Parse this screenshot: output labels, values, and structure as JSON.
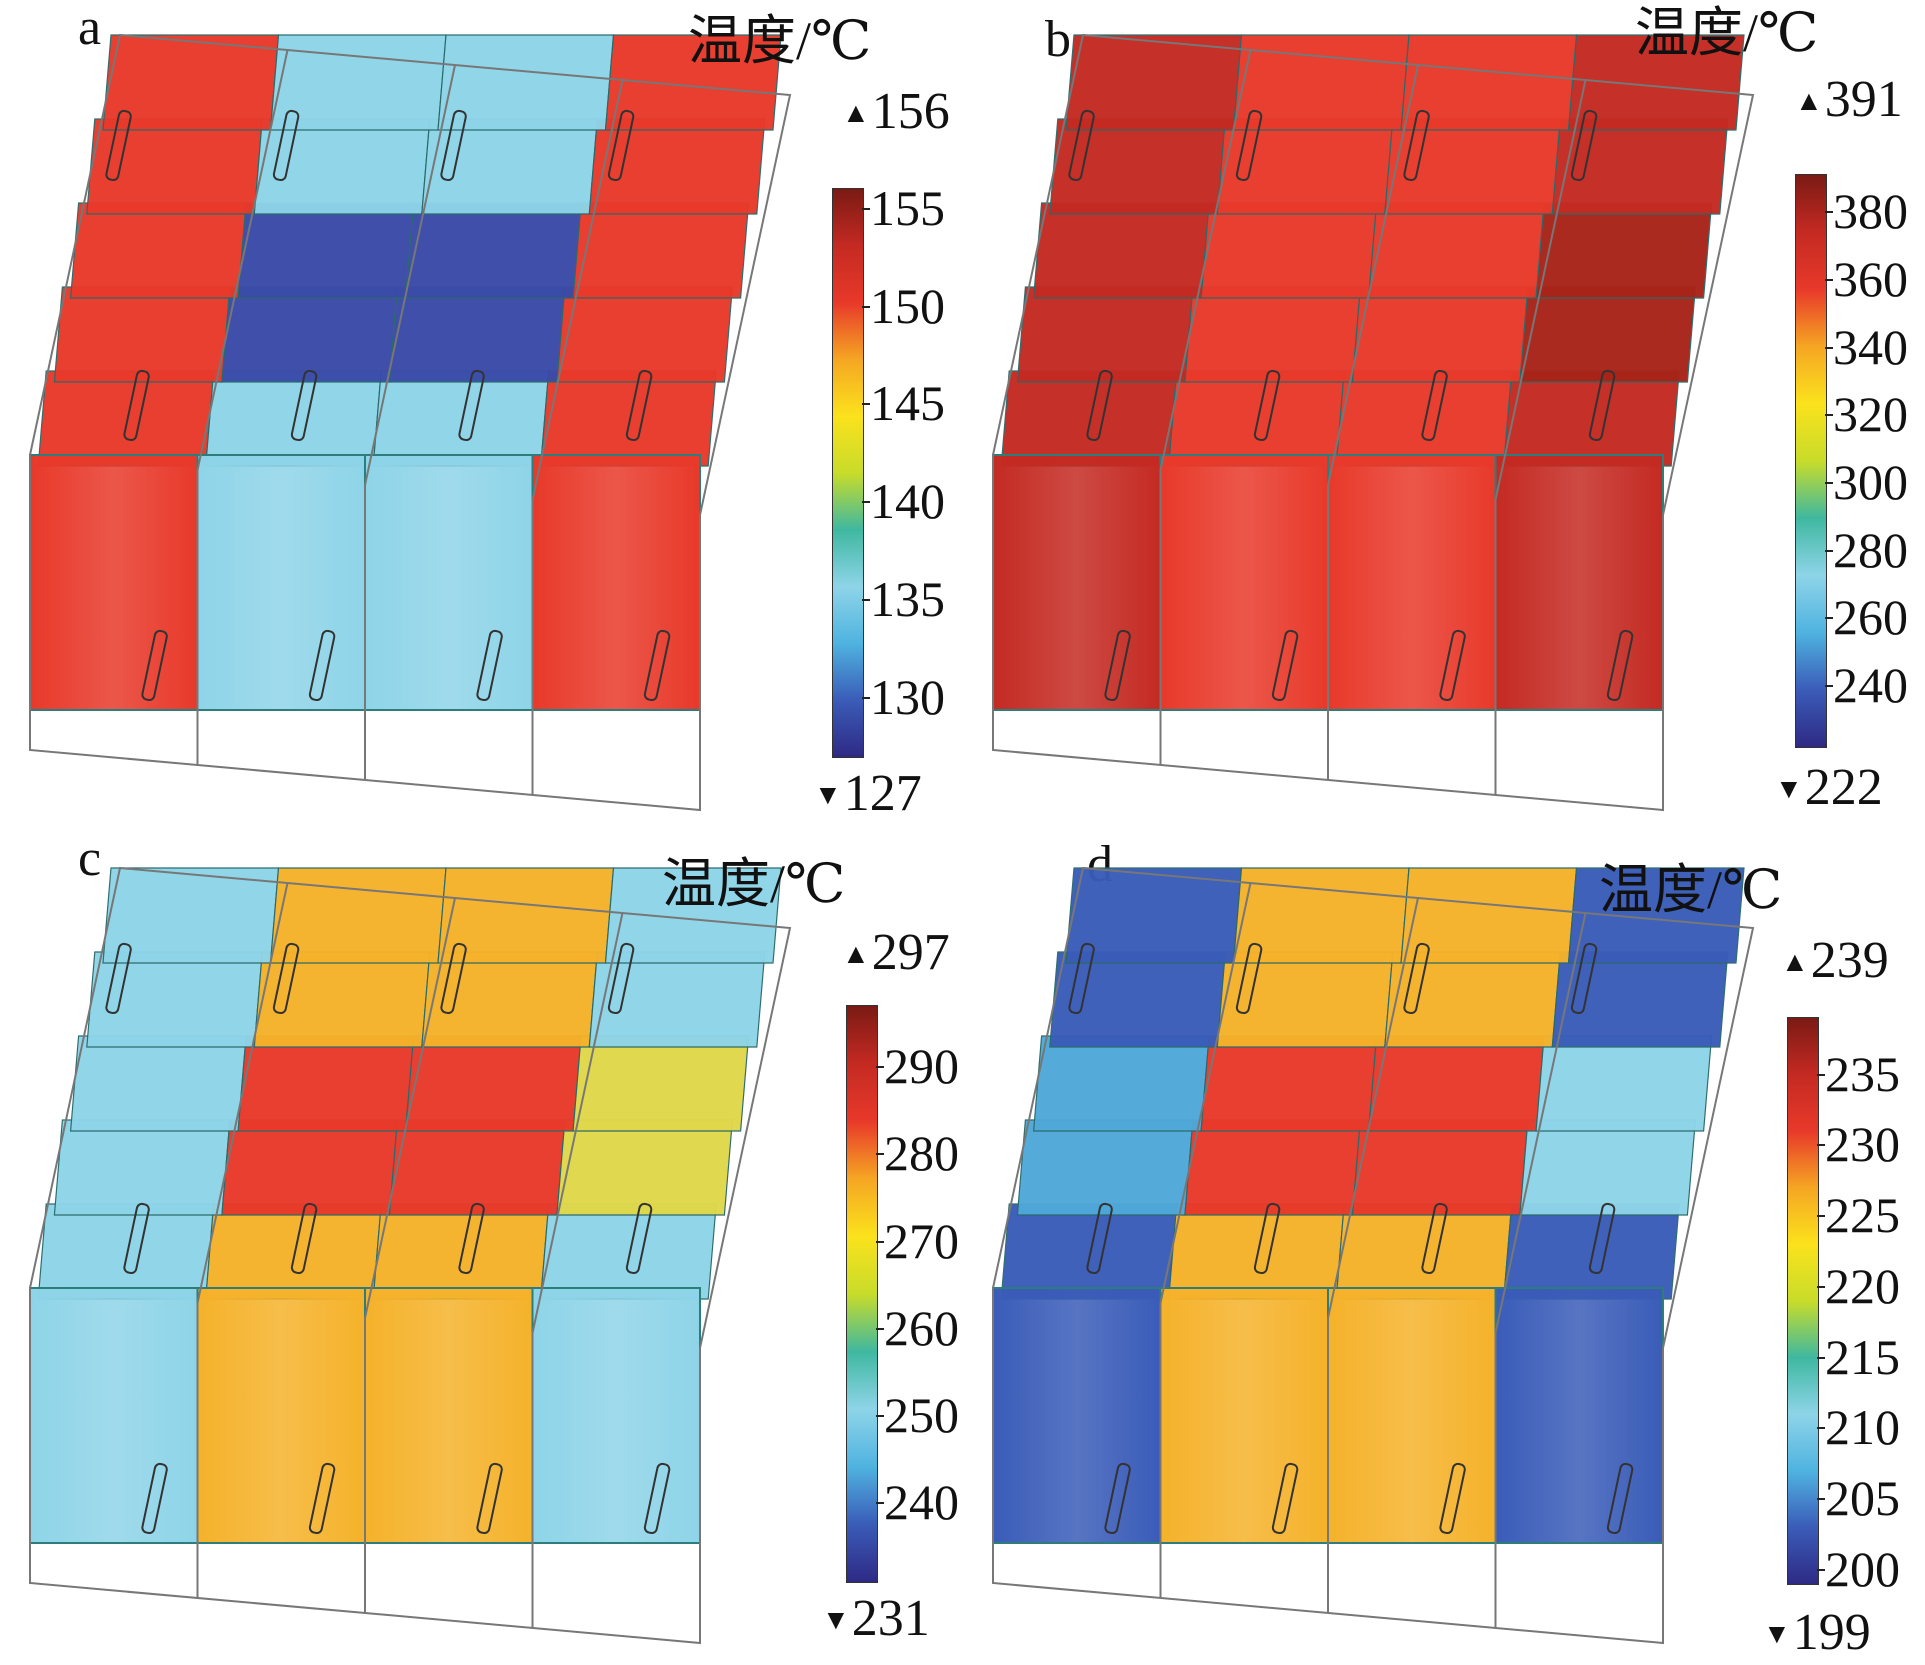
{
  "colormap": [
    "#2e2a84",
    "#3a5cb8",
    "#4fb3e0",
    "#8ed4e8",
    "#3fb8a0",
    "#c8dc2a",
    "#fbe21c",
    "#f5a623",
    "#e8392a",
    "#c42a22",
    "#7a1a14"
  ],
  "panels": [
    {
      "id": "a",
      "label": "a",
      "cbar_title": "温度/℃",
      "max_label": "156",
      "min_label": "127",
      "max": 156,
      "min": 127,
      "ticks": [
        "155",
        "150",
        "145",
        "140",
        "135",
        "130"
      ],
      "tick_values": [
        155,
        150,
        145,
        140,
        135,
        130
      ],
      "column_colors": [
        "#e8392a",
        "#8ed4e8",
        "#8ed4e8",
        "#e8392a"
      ],
      "inner_colors": [
        "#e8392a",
        "#3a4ba8",
        "#3a4ba8",
        "#e8392a"
      ]
    },
    {
      "id": "b",
      "label": "b",
      "cbar_title": "温度/℃",
      "max_label": "391",
      "min_label": "222",
      "max": 391,
      "min": 222,
      "ticks": [
        "380",
        "360",
        "340",
        "320",
        "300",
        "280",
        "260",
        "240"
      ],
      "tick_values": [
        380,
        360,
        340,
        320,
        300,
        280,
        260,
        240
      ],
      "column_colors": [
        "#c42a22",
        "#e8392a",
        "#e8392a",
        "#c42a22"
      ],
      "inner_colors": [
        "#c42a22",
        "#e8392a",
        "#e8392a",
        "#a82418"
      ]
    },
    {
      "id": "c",
      "label": "c",
      "cbar_title": "温度/℃",
      "max_label": "297",
      "min_label": "231",
      "max": 297,
      "min": 231,
      "ticks": [
        "290",
        "280",
        "270",
        "260",
        "250",
        "240"
      ],
      "tick_values": [
        290,
        280,
        270,
        260,
        250,
        240
      ],
      "column_colors": [
        "#8ed4e8",
        "#f5b22a",
        "#f5b22a",
        "#8ed4e8"
      ],
      "inner_colors": [
        "#8ed4e8",
        "#e8392a",
        "#e8392a",
        "#e0d84a"
      ]
    },
    {
      "id": "d",
      "label": "d",
      "cbar_title": "温度/℃",
      "max_label": "239",
      "min_label": "199",
      "max": 239,
      "min": 199,
      "ticks": [
        "235",
        "230",
        "225",
        "220",
        "215",
        "210",
        "205",
        "200"
      ],
      "tick_values": [
        235,
        230,
        225,
        220,
        215,
        210,
        205,
        200
      ],
      "column_colors": [
        "#3a5cb8",
        "#f5b22a",
        "#f5b22a",
        "#3a5cb8"
      ],
      "inner_colors": [
        "#4fa8d8",
        "#e8392a",
        "#e8392a",
        "#8ed4e8"
      ]
    }
  ]
}
